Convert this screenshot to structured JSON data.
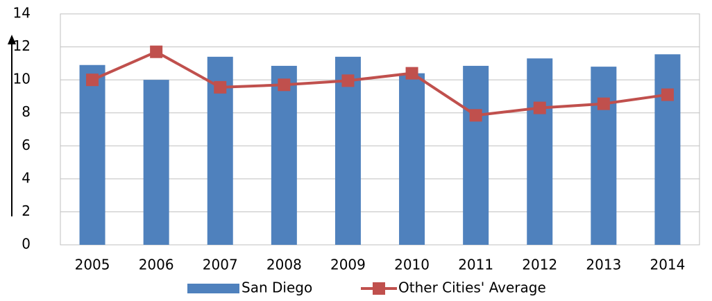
{
  "chart_data": {
    "type": "bar",
    "categories": [
      "2005",
      "2006",
      "2007",
      "2008",
      "2009",
      "2010",
      "2011",
      "2012",
      "2013",
      "2014"
    ],
    "series": [
      {
        "name": "San Diego",
        "type": "bar",
        "color": "#4f81bd",
        "values": [
          10.9,
          10.0,
          11.4,
          10.85,
          11.4,
          10.4,
          10.85,
          11.3,
          10.8,
          11.55
        ]
      },
      {
        "name": "Other Cities' Average",
        "type": "line",
        "color": "#c0504d",
        "values": [
          10.0,
          11.7,
          9.55,
          9.7,
          9.95,
          10.4,
          7.85,
          8.3,
          8.55,
          9.1
        ]
      }
    ],
    "ylim": [
      0,
      14
    ],
    "yticks": [
      0,
      2,
      4,
      6,
      8,
      10,
      12,
      14
    ],
    "grid": true,
    "legend": "bottom"
  }
}
